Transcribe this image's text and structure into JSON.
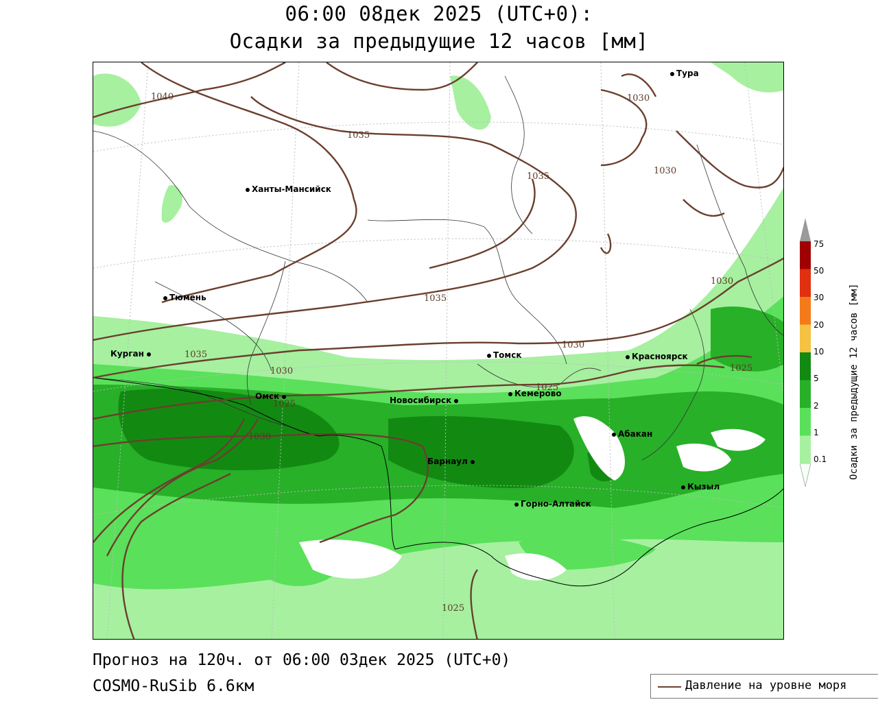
{
  "title": {
    "line1": "06:00 08дек 2025 (UTC+0):",
    "line2": "Осадки за предыдущие 12 часов [мм]"
  },
  "footer": {
    "forecast": "Прогноз на 120ч. от 06:00 03дек 2025 (UTC+0)",
    "model": "COSMO-RuSib 6.6км"
  },
  "legend": {
    "line_label": "Давление на уровне моря",
    "line_color": "#6b3f2e"
  },
  "colorbar": {
    "title": "Осадки за предыдущие 12 часов [мм]",
    "levels": [
      "0.1",
      "1",
      "2",
      "5",
      "10",
      "20",
      "30",
      "50",
      "75"
    ],
    "colors": [
      "#f5fff5",
      "#a6f0a0",
      "#5ae05a",
      "#28b028",
      "#128a12",
      "#f5c242",
      "#f57a1a",
      "#e03010",
      "#a00000",
      "#9a9a9a"
    ]
  },
  "cities": [
    {
      "name": "Тура"
    },
    {
      "name": "Ханты-Мансийск"
    },
    {
      "name": "Тюмень"
    },
    {
      "name": "Курган"
    },
    {
      "name": "Томск"
    },
    {
      "name": "Красноярск"
    },
    {
      "name": "Омск"
    },
    {
      "name": "Новосибирск"
    },
    {
      "name": "Кемерово"
    },
    {
      "name": "Абакан"
    },
    {
      "name": "Барнаул"
    },
    {
      "name": "Горно-Алтайск"
    },
    {
      "name": "Кызыл"
    }
  ],
  "isobar_labels": [
    "1040",
    "1035",
    "1035",
    "1035",
    "1035",
    "1030",
    "1030",
    "1030",
    "1030",
    "1030",
    "1030",
    "1025",
    "1025",
    "1025",
    "1025"
  ]
}
